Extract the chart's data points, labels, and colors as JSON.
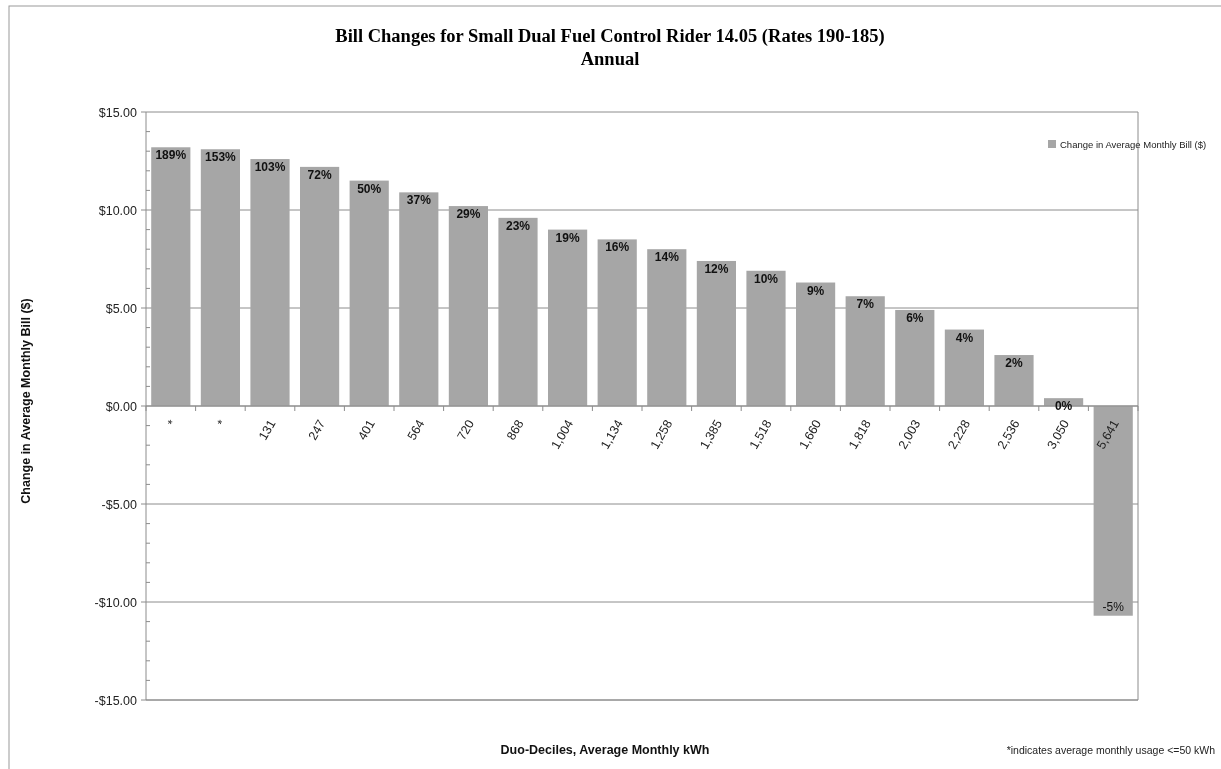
{
  "chart_data": {
    "type": "bar",
    "title": "Bill Changes for Small Dual Fuel Control Rider 14.05 (Rates 190-185)",
    "subtitle": "Annual",
    "xlabel": "Duo-Deciles, Average Monthly kWh",
    "ylabel": "Change in Average Monthly Bill ($)",
    "annotations": [
      "*indicates average monthly usage <=50 kWh",
      {
        "text": "189%",
        "x": "*",
        "y": 13.2
      },
      {
        "text": "153%",
        "x": "*",
        "y": 13.1
      },
      {
        "text": "103%",
        "x": "131",
        "y": 12.6
      },
      {
        "text": "72%",
        "x": "247",
        "y": 12.2
      },
      {
        "text": "50%",
        "x": "401",
        "y": 11.5
      },
      {
        "text": "37%",
        "x": "564",
        "y": 10.9
      },
      {
        "text": "29%",
        "x": "720",
        "y": 10.2
      },
      {
        "text": "23%",
        "x": "868",
        "y": 9.6
      },
      {
        "text": "19%",
        "x": "1,004",
        "y": 9.0
      },
      {
        "text": "16%",
        "x": "1,134",
        "y": 8.5
      },
      {
        "text": "14%",
        "x": "1,258",
        "y": 8.0
      },
      {
        "text": "12%",
        "x": "1,385",
        "y": 7.4
      },
      {
        "text": "10%",
        "x": "1,518",
        "y": 6.9
      },
      {
        "text": "9%",
        "x": "1,660",
        "y": 6.3
      },
      {
        "text": "7%",
        "x": "1,818",
        "y": 5.6
      },
      {
        "text": "6%",
        "x": "2,003",
        "y": 4.9
      },
      {
        "text": "4%",
        "x": "2,228",
        "y": 3.9
      },
      {
        "text": "2%",
        "x": "2,536",
        "y": 2.6
      },
      {
        "text": "0%",
        "x": "3,050",
        "y": 0.4
      },
      {
        "text": "-5%",
        "x": "5,641",
        "y": -10.7
      }
    ],
    "categories": [
      "*",
      "*",
      "131",
      "247",
      "401",
      "564",
      "720",
      "868",
      "1,004",
      "1,134",
      "1,258",
      "1,385",
      "1,518",
      "1,660",
      "1,818",
      "2,003",
      "2,228",
      "2,536",
      "3,050",
      "5,641"
    ],
    "series": [
      {
        "name": "Change in Average Monthly Bill ($)",
        "color": "#a6a6a6",
        "values": [
          13.2,
          13.1,
          12.6,
          12.2,
          11.5,
          10.9,
          10.2,
          9.6,
          9.0,
          8.5,
          8.0,
          7.4,
          6.9,
          6.3,
          5.6,
          4.9,
          3.9,
          2.6,
          0.4,
          -10.7
        ]
      }
    ],
    "ylim": [
      -15,
      15
    ],
    "yticks": [
      {
        "value": -15,
        "label": "-$15.00"
      },
      {
        "value": -14,
        "label": null
      },
      {
        "value": -13,
        "label": null
      },
      {
        "value": -12,
        "label": null
      },
      {
        "value": -11,
        "label": null
      },
      {
        "value": -10,
        "label": "-$10.00"
      },
      {
        "value": -9,
        "label": null
      },
      {
        "value": -8,
        "label": null
      },
      {
        "value": -7,
        "label": null
      },
      {
        "value": -6,
        "label": null
      },
      {
        "value": -5,
        "label": "-$5.00"
      },
      {
        "value": -4,
        "label": null
      },
      {
        "value": -3,
        "label": null
      },
      {
        "value": -2,
        "label": null
      },
      {
        "value": -1,
        "label": null
      },
      {
        "value": 0,
        "label": "$0.00"
      },
      {
        "value": 1,
        "label": null
      },
      {
        "value": 2,
        "label": null
      },
      {
        "value": 3,
        "label": null
      },
      {
        "value": 4,
        "label": null
      },
      {
        "value": 5,
        "label": "$5.00"
      },
      {
        "value": 6,
        "label": null
      },
      {
        "value": 7,
        "label": null
      },
      {
        "value": 8,
        "label": null
      },
      {
        "value": 9,
        "label": null
      },
      {
        "value": 10,
        "label": "$10.00"
      },
      {
        "value": 11,
        "label": null
      },
      {
        "value": 12,
        "label": null
      },
      {
        "value": 13,
        "label": null
      },
      {
        "value": 14,
        "label": null
      },
      {
        "value": 15,
        "label": "$15.00"
      }
    ],
    "grid": "y",
    "legend": "top right"
  }
}
